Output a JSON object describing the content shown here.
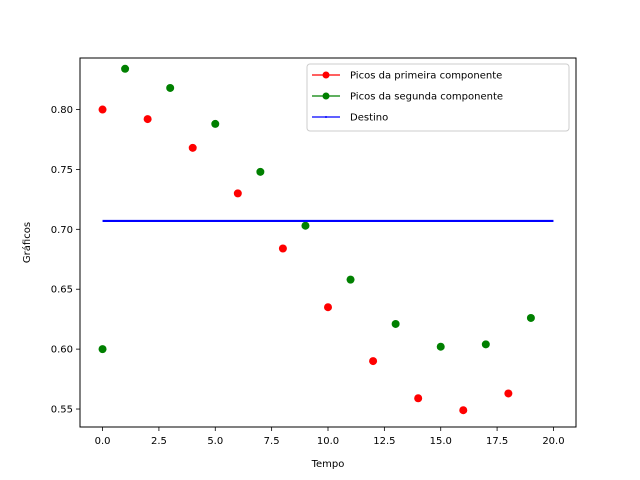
{
  "chart_data": {
    "type": "scatter",
    "title": "",
    "xlabel": "Tempo",
    "ylabel": "Gráficos",
    "xlim": [
      -1,
      21
    ],
    "ylim": [
      0.535,
      0.843
    ],
    "xticks": [
      0.0,
      2.5,
      5.0,
      7.5,
      10.0,
      12.5,
      15.0,
      17.5,
      20.0
    ],
    "xtick_labels": [
      "0.0",
      "2.5",
      "5.0",
      "7.5",
      "10.0",
      "12.5",
      "15.0",
      "17.5",
      "20.0"
    ],
    "yticks": [
      0.55,
      0.6,
      0.65,
      0.7,
      0.75,
      0.8
    ],
    "ytick_labels": [
      "0.55",
      "0.60",
      "0.65",
      "0.70",
      "0.75",
      "0.80"
    ],
    "grid": false,
    "legend_position": "top-right",
    "series": [
      {
        "name": "Picos da primeira componente",
        "color": "#ff0000",
        "marker": "circle",
        "points": [
          [
            0,
            0.8
          ],
          [
            2,
            0.792
          ],
          [
            4,
            0.768
          ],
          [
            6,
            0.73
          ],
          [
            8,
            0.684
          ],
          [
            10,
            0.635
          ],
          [
            12,
            0.59
          ],
          [
            14,
            0.559
          ],
          [
            16,
            0.549
          ],
          [
            18,
            0.563
          ]
        ]
      },
      {
        "name": "Picos da segunda componente",
        "color": "#008000",
        "marker": "circle",
        "points": [
          [
            0,
            0.6
          ],
          [
            1,
            0.834
          ],
          [
            3,
            0.818
          ],
          [
            5,
            0.788
          ],
          [
            7,
            0.748
          ],
          [
            9,
            0.703
          ],
          [
            11,
            0.658
          ],
          [
            13,
            0.621
          ],
          [
            15,
            0.602
          ],
          [
            17,
            0.604
          ],
          [
            19,
            0.626
          ]
        ]
      },
      {
        "name": "Destino",
        "color": "#0000ff",
        "marker": "line",
        "points": [
          [
            0,
            0.707
          ],
          [
            20,
            0.707
          ]
        ]
      }
    ]
  }
}
